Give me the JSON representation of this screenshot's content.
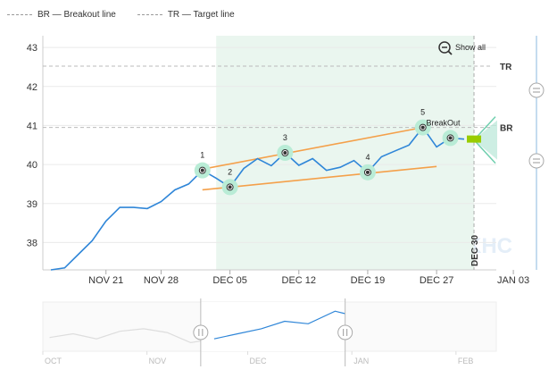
{
  "legend": [
    {
      "label": "BR — Breakout line"
    },
    {
      "label": "TR — Target line"
    }
  ],
  "toolbar": {
    "show_all_label": "Show all"
  },
  "colors": {
    "price": "#2f86d8",
    "trend": "#f4a04a",
    "pattern_point": "#b9ecd6",
    "selection": "#eaf6ef",
    "dashed": "#bbbbbb",
    "breakout_arrow": "#6fcfae",
    "nav_line": "#dddddd"
  },
  "chart_data": {
    "type": "line",
    "title": "",
    "xlabel": "",
    "ylabel": "",
    "ylim": [
      37.3,
      43.3
    ],
    "y_ticks": [
      "38",
      "39",
      "40",
      "41",
      "42",
      "43"
    ],
    "x_ticks": [
      "NOV 21",
      "NOV 28",
      "DEC 05",
      "DEC 12",
      "DEC 19",
      "DEC 27",
      "JAN 03"
    ],
    "x_tick_dates": [
      "2016-11-21",
      "2016-11-28",
      "2016-12-05",
      "2016-12-12",
      "2016-12-19",
      "2016-12-27",
      "2017-01-03"
    ],
    "series": [
      {
        "name": "",
        "points": [
          [
            "2016-11-15",
            37.3
          ],
          [
            "2016-11-16",
            37.35
          ],
          [
            "2016-11-17",
            37.7
          ],
          [
            "2016-11-18",
            38.05
          ],
          [
            "2016-11-21",
            38.55
          ],
          [
            "2016-11-22",
            38.9
          ],
          [
            "2016-11-23",
            38.9
          ],
          [
            "2016-11-25",
            38.87
          ],
          [
            "2016-11-28",
            39.05
          ],
          [
            "2016-11-29",
            39.35
          ],
          [
            "2016-11-30",
            39.5
          ],
          [
            "2016-12-01",
            39.85
          ],
          [
            "2016-12-02",
            39.65
          ],
          [
            "2016-12-05",
            39.42
          ],
          [
            "2016-12-06",
            39.9
          ],
          [
            "2016-12-07",
            40.15
          ],
          [
            "2016-12-08",
            39.97
          ],
          [
            "2016-12-09",
            40.3
          ],
          [
            "2016-12-12",
            39.98
          ],
          [
            "2016-12-13",
            40.15
          ],
          [
            "2016-12-14",
            39.85
          ],
          [
            "2016-12-15",
            39.93
          ],
          [
            "2016-12-16",
            40.1
          ],
          [
            "2016-12-19",
            39.8
          ],
          [
            "2016-12-20",
            40.2
          ],
          [
            "2016-12-21",
            40.35
          ],
          [
            "2016-12-22",
            40.5
          ],
          [
            "2016-12-23",
            40.95
          ],
          [
            "2016-12-27",
            40.45
          ],
          [
            "2016-12-28",
            40.68
          ],
          [
            "2016-12-29",
            40.65
          ]
        ]
      }
    ],
    "pattern_points": [
      {
        "label": "1",
        "date": "2016-12-01",
        "value": 39.85
      },
      {
        "label": "2",
        "date": "2016-12-05",
        "value": 39.42
      },
      {
        "label": "3",
        "date": "2016-12-09",
        "value": 40.3
      },
      {
        "label": "4",
        "date": "2016-12-19",
        "value": 39.8
      },
      {
        "label": "5",
        "date": "2016-12-23",
        "value": 40.95
      },
      {
        "label": "BreakOut",
        "date": "2016-12-28",
        "value": 40.68
      }
    ],
    "trend_lines": [
      {
        "from": [
          "2016-12-01",
          39.88
        ],
        "to": [
          "2016-12-23",
          40.95
        ]
      },
      {
        "from": [
          "2016-12-01",
          39.35
        ],
        "to": [
          "2016-12-27",
          39.95
        ]
      }
    ],
    "horizontal_lines": [
      {
        "label": "TR",
        "value": 42.52
      },
      {
        "label": "BR",
        "value": 40.95
      }
    ],
    "vertical_marker": {
      "label": "DEC 30",
      "date": "2016-12-30"
    },
    "highlight_range": [
      "2016-12-02",
      "2016-12-30"
    ],
    "watermark": "KHC",
    "grid": true,
    "legend_position": "top-left",
    "navigator": {
      "labels": [
        "OCT",
        "NOV",
        "DEC",
        "JAN",
        "FEB"
      ],
      "label_dates": [
        "2016-10-01",
        "2016-11-01",
        "2016-12-01",
        "2017-01-01",
        "2017-02-01"
      ],
      "window": [
        "2016-11-17",
        "2016-12-30"
      ],
      "history": [
        [
          "2016-10-03",
          38.7
        ],
        [
          "2016-10-10",
          39.0
        ],
        [
          "2016-10-17",
          38.6
        ],
        [
          "2016-10-24",
          39.2
        ],
        [
          "2016-10-31",
          39.4
        ],
        [
          "2016-11-07",
          39.1
        ],
        [
          "2016-11-14",
          38.3
        ],
        [
          "2016-11-21",
          38.6
        ],
        [
          "2016-11-28",
          39.0
        ],
        [
          "2016-12-05",
          39.4
        ],
        [
          "2016-12-12",
          40.0
        ],
        [
          "2016-12-19",
          39.8
        ],
        [
          "2016-12-27",
          40.8
        ],
        [
          "2016-12-30",
          40.6
        ]
      ]
    }
  }
}
